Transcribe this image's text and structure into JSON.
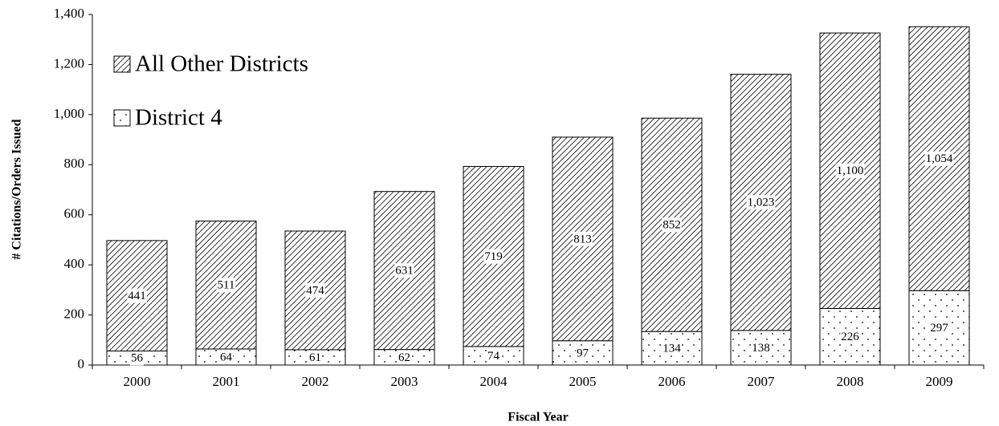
{
  "chart_data": {
    "type": "stacked-bar",
    "y_label": "# Citations/Orders Issued",
    "x_label": "Fiscal Year",
    "categories": [
      "2000",
      "2001",
      "2002",
      "2003",
      "2004",
      "2005",
      "2006",
      "2007",
      "2008",
      "2009"
    ],
    "series": [
      {
        "name": "District 4",
        "color": "#000000",
        "pattern": "dots",
        "values": [
          56,
          64,
          61,
          62,
          74,
          97,
          134,
          138,
          226,
          297
        ]
      },
      {
        "name": "All Other Districts",
        "color": "#000000",
        "pattern": "hatch",
        "values": [
          441,
          511,
          474,
          631,
          719,
          813,
          852,
          1023,
          1100,
          1054
        ],
        "value_labels": [
          "441",
          "511",
          "474",
          "631",
          "719",
          "813",
          "852",
          "1,023",
          "1,100",
          "1,054"
        ]
      }
    ],
    "ylim": [
      0,
      1400
    ],
    "yticks": [
      0,
      200,
      400,
      600,
      800,
      {
        "value": 1000,
        "label": "1,000"
      },
      {
        "value": 1200,
        "label": "1,200"
      },
      {
        "value": 1400,
        "label": "1,400"
      }
    ]
  }
}
